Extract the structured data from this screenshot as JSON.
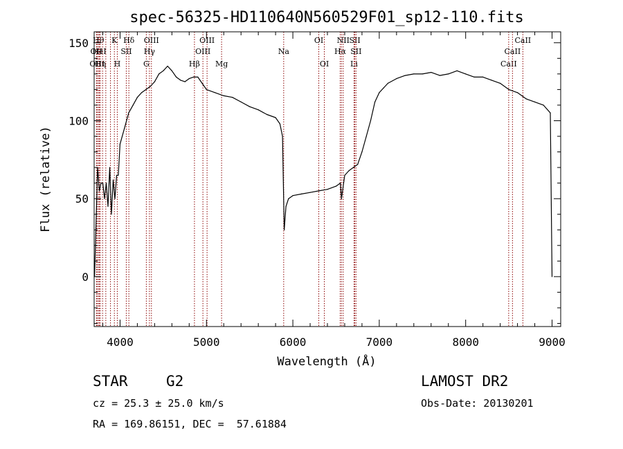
{
  "chart_data": {
    "type": "line",
    "title": "spec-56325-HD110640N560529F01_sp12-110.fits",
    "xlabel": "Wavelength (Å)",
    "ylabel": "Flux (relative)",
    "xlim": [
      3700,
      9100
    ],
    "ylim": [
      -32,
      157
    ],
    "xticks": [
      4000,
      5000,
      6000,
      7000,
      8000,
      9000
    ],
    "xtick_labels": [
      "4000",
      "5000",
      "6000",
      "7000",
      "8000",
      "9000"
    ],
    "yticks": [
      0,
      50,
      100,
      150
    ],
    "ytick_labels": [
      "0",
      "50",
      "100",
      "150"
    ],
    "grid": false,
    "series": [
      {
        "color": "#000000",
        "x": [
          3705,
          3720,
          3740,
          3760,
          3780,
          3800,
          3820,
          3840,
          3860,
          3880,
          3900,
          3920,
          3940,
          3960,
          3980,
          4000,
          4050,
          4100,
          4150,
          4200,
          4250,
          4300,
          4350,
          4400,
          4450,
          4500,
          4550,
          4600,
          4650,
          4700,
          4750,
          4800,
          4850,
          4900,
          4950,
          5000,
          5100,
          5200,
          5300,
          5400,
          5500,
          5600,
          5700,
          5800,
          5850,
          5880,
          5900,
          5920,
          5950,
          6000,
          6100,
          6200,
          6300,
          6400,
          6500,
          6550,
          6563,
          6600,
          6650,
          6700,
          6750,
          6800,
          6850,
          6900,
          6950,
          7000,
          7050,
          7100,
          7200,
          7300,
          7400,
          7500,
          7600,
          7700,
          7800,
          7900,
          8000,
          8100,
          8200,
          8300,
          8400,
          8500,
          8600,
          8700,
          8800,
          8900,
          8980,
          9000
        ],
        "y": [
          0,
          30,
          70,
          55,
          60,
          60,
          50,
          60,
          45,
          70,
          40,
          62,
          50,
          65,
          65,
          85,
          95,
          105,
          110,
          115,
          118,
          120,
          122,
          125,
          130,
          132,
          135,
          132,
          128,
          126,
          125,
          127,
          128,
          128,
          124,
          120,
          118,
          116,
          115,
          112,
          109,
          107,
          104,
          102,
          98,
          90,
          30,
          45,
          50,
          52,
          53,
          54,
          55,
          56,
          58,
          60,
          50,
          65,
          68,
          70,
          72,
          80,
          90,
          100,
          112,
          118,
          121,
          124,
          127,
          129,
          130,
          130,
          131,
          129,
          130,
          132,
          130,
          128,
          128,
          126,
          124,
          120,
          118,
          114,
          112,
          110,
          105,
          0
        ]
      }
    ],
    "line_marks": [
      {
        "x": 3727,
        "label": "OII",
        "row": 1
      },
      {
        "x": 3735,
        "label": "OIII",
        "row": 2
      },
      {
        "x": 3750,
        "label": "Hθ",
        "row": 0
      },
      {
        "x": 3760,
        "label": "HeI",
        "row": 1
      },
      {
        "x": 3772,
        "label": "Hη",
        "row": 2
      },
      {
        "x": 3798,
        "label": "",
        "row": 0
      },
      {
        "x": 3835,
        "label": "",
        "row": 0
      },
      {
        "x": 3889,
        "label": "",
        "row": 0
      },
      {
        "x": 3934,
        "label": "K",
        "row": 0
      },
      {
        "x": 3968,
        "label": "H",
        "row": 2
      },
      {
        "x": 4072,
        "label": "SII",
        "row": 1
      },
      {
        "x": 4102,
        "label": "Hδ",
        "row": 0
      },
      {
        "x": 4304,
        "label": "G",
        "row": 2
      },
      {
        "x": 4340,
        "label": "Hγ",
        "row": 1
      },
      {
        "x": 4363,
        "label": "OIII",
        "row": 0
      },
      {
        "x": 4861,
        "label": "Hβ",
        "row": 2
      },
      {
        "x": 4959,
        "label": "OIII",
        "row": 1
      },
      {
        "x": 5007,
        "label": "OIII",
        "row": 0
      },
      {
        "x": 5175,
        "label": "Mg",
        "row": 2
      },
      {
        "x": 5894,
        "label": "Na",
        "row": 1
      },
      {
        "x": 6300,
        "label": "OI",
        "row": 0
      },
      {
        "x": 6364,
        "label": "OI",
        "row": 2
      },
      {
        "x": 6548,
        "label": "Hα",
        "row": 1
      },
      {
        "x": 6563,
        "label": "",
        "row": 1
      },
      {
        "x": 6583,
        "label": "NII",
        "row": 0
      },
      {
        "x": 6708,
        "label": "Li",
        "row": 2
      },
      {
        "x": 6717,
        "label": "SII",
        "row": 0
      },
      {
        "x": 6731,
        "label": "SII",
        "row": 1
      },
      {
        "x": 8498,
        "label": "CaII",
        "row": 2
      },
      {
        "x": 8542,
        "label": "CaII",
        "row": 1
      },
      {
        "x": 8662,
        "label": "CaII",
        "row": 0
      }
    ],
    "mark_color": "#8b0000"
  },
  "info": {
    "class": "STAR",
    "subclass": "G2",
    "survey": "LAMOST DR2",
    "cz": "cz = 25.3 ± 25.0 km/s",
    "obs_date": "Obs-Date: 20130201",
    "coords": "RA = 169.86151, DEC =  57.61884"
  }
}
